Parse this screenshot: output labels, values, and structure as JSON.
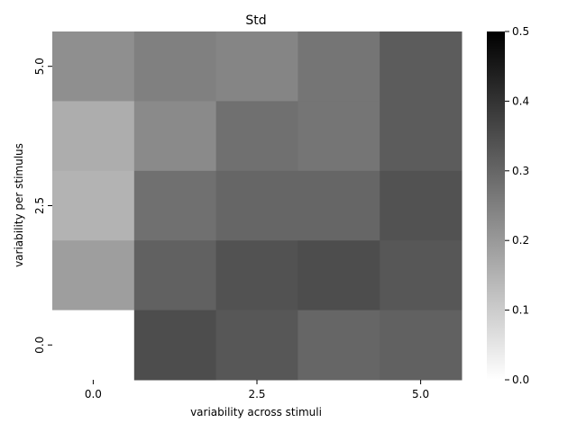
{
  "chart_data": {
    "type": "heatmap",
    "title": "Std",
    "xlabel": "variability across stimuli",
    "ylabel": "variability per stimulus",
    "x_ticks": [
      "0.0",
      "2.5",
      "5.0"
    ],
    "y_ticks": [
      "5.0",
      "2.5",
      "0.0"
    ],
    "colorbar": {
      "min": 0.0,
      "max": 0.5,
      "ticks": [
        "0.0",
        "0.1",
        "0.2",
        "0.3",
        "0.4",
        "0.5"
      ]
    },
    "colormap": "greys",
    "rows": 5,
    "cols": 5,
    "values": [
      [
        0.22,
        0.25,
        0.24,
        0.27,
        0.32
      ],
      [
        0.16,
        0.23,
        0.28,
        0.27,
        0.32
      ],
      [
        0.15,
        0.28,
        0.3,
        0.3,
        0.34
      ],
      [
        0.19,
        0.31,
        0.34,
        0.35,
        0.33
      ],
      [
        0.0,
        0.35,
        0.33,
        0.3,
        0.31
      ]
    ]
  }
}
